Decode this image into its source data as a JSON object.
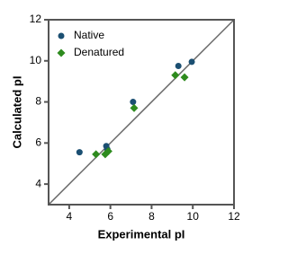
{
  "chart_data": {
    "type": "scatter",
    "x_label": "Experimental pI",
    "y_label": "Calculated pI",
    "xlim": [
      3,
      12
    ],
    "ylim": [
      3,
      12
    ],
    "xticks": [
      4,
      6,
      8,
      10,
      12
    ],
    "yticks": [
      4,
      6,
      8,
      10,
      12
    ],
    "legend": "upper left",
    "series": [
      {
        "name": "Native",
        "color": "#1b4f72",
        "marker": "circle",
        "x": [
          4.5,
          5.8,
          5.85,
          7.1,
          9.3,
          9.95
        ],
        "values": [
          5.55,
          5.85,
          5.7,
          8.0,
          9.75,
          9.95
        ]
      },
      {
        "name": "Denatured",
        "color": "#2e8b1e",
        "marker": "diamond",
        "x": [
          5.3,
          5.75,
          5.9,
          7.15,
          9.15,
          9.6
        ],
        "values": [
          5.45,
          5.45,
          5.6,
          7.7,
          9.3,
          9.2
        ]
      }
    ]
  }
}
